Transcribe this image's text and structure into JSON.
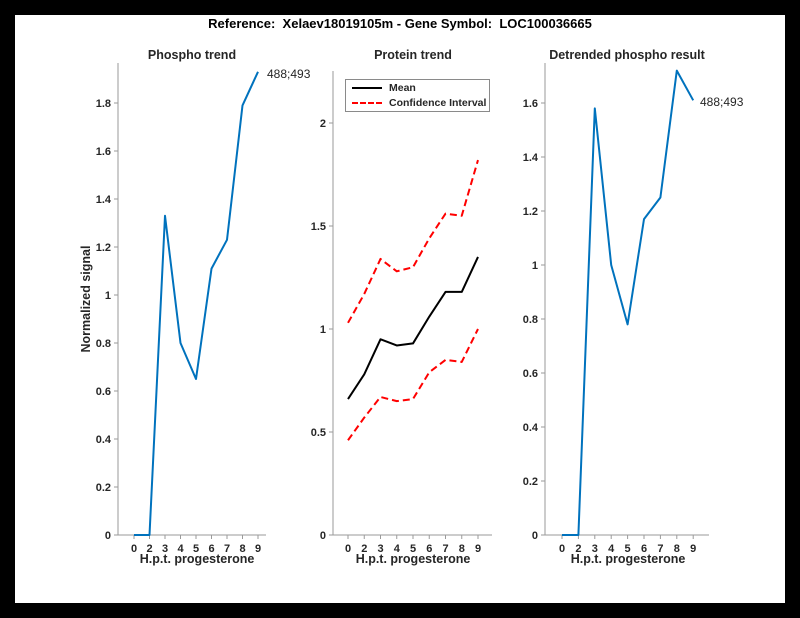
{
  "figure": {
    "title": "Reference:  Xelaev18019105m - Gene Symbol:  LOC100036665",
    "background": "#ffffff",
    "frame_color": "#000000"
  },
  "colors": {
    "line_blue": "#0072BD",
    "ci_red": "#FF0000",
    "mean_black": "#000000",
    "axis": "#9a9a9a",
    "text": "#262626"
  },
  "chart_data": [
    {
      "id": "phospho-trend",
      "type": "line",
      "title": "Phospho trend",
      "xlabel": "H.p.t. progesterone",
      "ylabel": "Normalized signal",
      "x_spacing": "categorical",
      "categories": [
        0,
        2,
        3,
        4,
        5,
        6,
        7,
        8,
        9
      ],
      "y_ticks": [
        0,
        0.2,
        0.4,
        0.6,
        0.8,
        1,
        1.2,
        1.4,
        1.6,
        1.8
      ],
      "ylim": [
        0,
        1.97
      ],
      "grid": false,
      "series": [
        {
          "name": "phospho-signal",
          "color": "#0072BD",
          "dash": false,
          "values": [
            0,
            0,
            1.33,
            0.8,
            0.65,
            1.11,
            1.23,
            1.79,
            1.93
          ]
        }
      ],
      "annotation": {
        "text": "488;493",
        "at_category": 9
      }
    },
    {
      "id": "protein-trend",
      "type": "line",
      "title": "Protein trend",
      "xlabel": "H.p.t. progesterone",
      "ylabel": "",
      "x_spacing": "categorical",
      "categories": [
        0,
        2,
        3,
        4,
        5,
        6,
        7,
        8,
        9
      ],
      "y_ticks": [
        0,
        0.5,
        1,
        1.5,
        2
      ],
      "ylim": [
        0,
        2.25
      ],
      "grid": false,
      "legend": {
        "position": "top-left",
        "entries": [
          {
            "label": "Mean",
            "color": "#000000",
            "dash": false
          },
          {
            "label": "Confidence Interval",
            "color": "#FF0000",
            "dash": true
          }
        ]
      },
      "series": [
        {
          "name": "ci-upper",
          "color": "#FF0000",
          "dash": true,
          "values": [
            1.03,
            1.17,
            1.34,
            1.28,
            1.3,
            1.44,
            1.56,
            1.55,
            1.82
          ]
        },
        {
          "name": "mean",
          "color": "#000000",
          "dash": false,
          "values": [
            0.66,
            0.78,
            0.95,
            0.92,
            0.93,
            1.06,
            1.18,
            1.18,
            1.35
          ]
        },
        {
          "name": "ci-lower",
          "color": "#FF0000",
          "dash": true,
          "values": [
            0.46,
            0.57,
            0.67,
            0.65,
            0.66,
            0.79,
            0.85,
            0.84,
            1.0
          ]
        }
      ]
    },
    {
      "id": "detrended-phospho",
      "type": "line",
      "title": "Detrended phospho result",
      "xlabel": "H.p.t. progesterone",
      "ylabel": "",
      "x_spacing": "categorical",
      "categories": [
        0,
        2,
        3,
        4,
        5,
        6,
        7,
        8,
        9
      ],
      "y_ticks": [
        0,
        0.2,
        0.4,
        0.6,
        0.8,
        1,
        1.2,
        1.4,
        1.6
      ],
      "ylim": [
        0,
        1.75
      ],
      "grid": false,
      "series": [
        {
          "name": "detrended-signal",
          "color": "#0072BD",
          "dash": false,
          "values": [
            0,
            0,
            1.58,
            1.0,
            0.78,
            1.17,
            1.25,
            1.72,
            1.61
          ]
        }
      ],
      "annotation": {
        "text": "488;493",
        "at_category": 9
      }
    }
  ]
}
